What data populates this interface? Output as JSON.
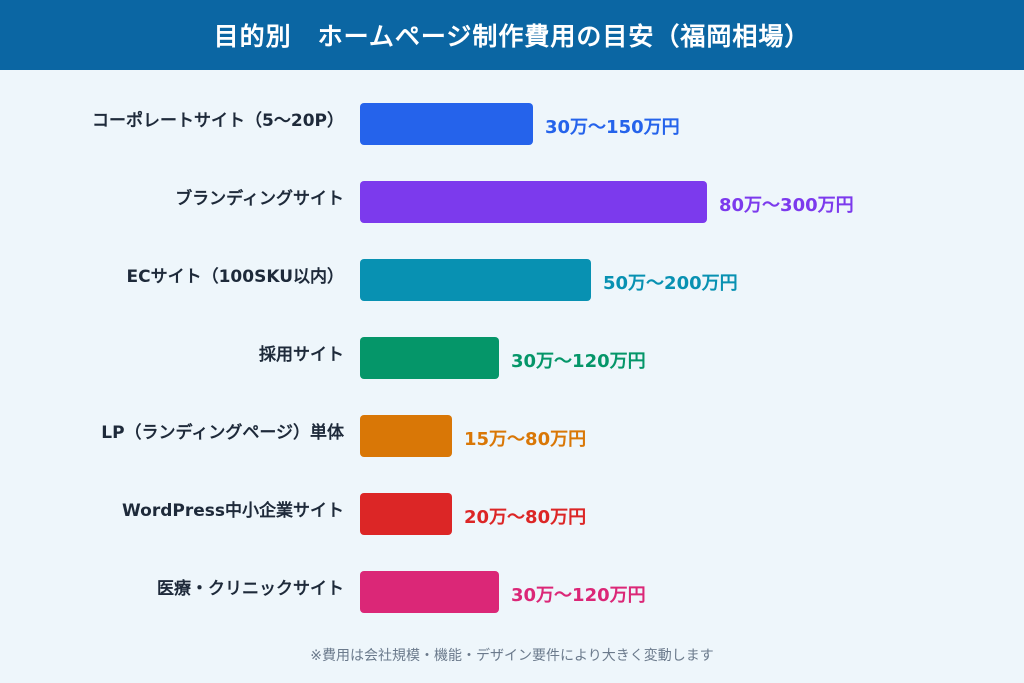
{
  "header": {
    "title": "目的別　ホームページ制作費用の目安（福岡相場）",
    "background": "#0b66a3"
  },
  "chart_data": {
    "type": "bar",
    "orientation": "horizontal",
    "title": "目的別　ホームページ制作費用の目安（福岡相場）",
    "xlabel": "",
    "ylabel": "",
    "unit": "万円",
    "xlim": [
      0,
      322
    ],
    "grid": false,
    "legend": "none",
    "categories": [
      "コーポレートサイト（5〜20P）",
      "ブランディングサイト",
      "ECサイト（100SKU以内）",
      "採用サイト",
      "LP（ランディングページ）単体",
      "WordPress中小企業サイト",
      "医療・クリニックサイト"
    ],
    "series": [
      {
        "ranges": [
          [
            30,
            150
          ],
          [
            80,
            300
          ],
          [
            50,
            200
          ],
          [
            30,
            120
          ],
          [
            15,
            80
          ],
          [
            20,
            80
          ],
          [
            30,
            120
          ]
        ],
        "value_labels": [
          "30万〜150万円",
          "80万〜300万円",
          "50万〜200万円",
          "30万〜120万円",
          "15万〜80万円",
          "20万〜80万円",
          "30万〜120万円"
        ],
        "colors": [
          "#2563eb",
          "#7c3aed",
          "#0891b2",
          "#059669",
          "#d97706",
          "#dc2626",
          "#db2777"
        ]
      }
    ]
  },
  "footnote": "※費用は会社規模・機能・デザイン要件により大きく変動します"
}
